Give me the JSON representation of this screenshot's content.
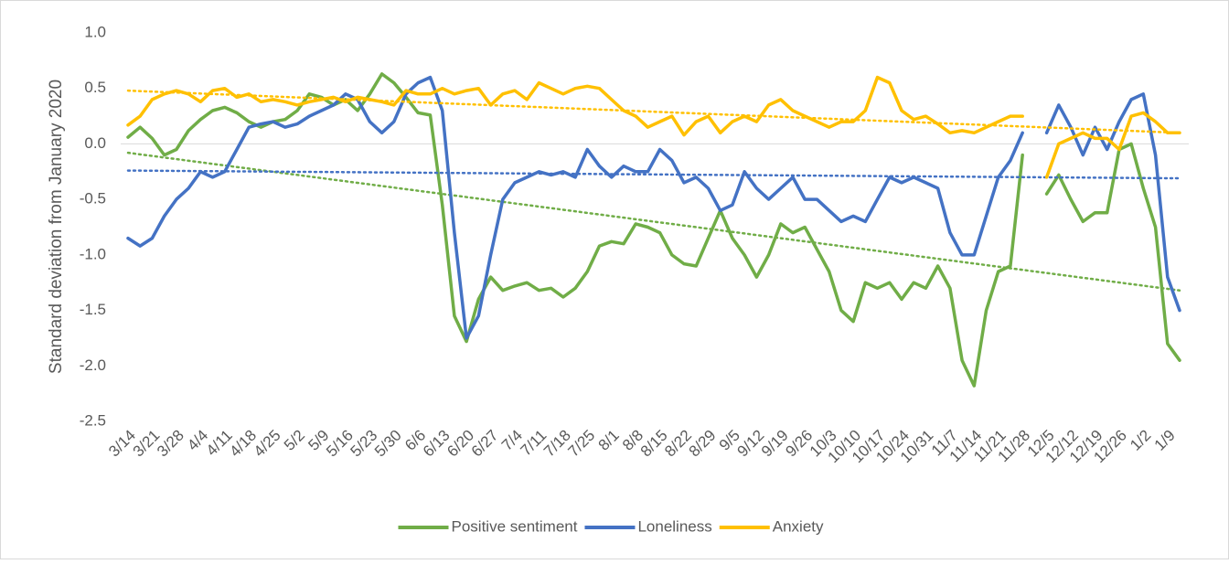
{
  "chart_data": {
    "type": "line",
    "y_label": "Standard deviation from January 2020",
    "categories": [
      "3/14",
      null,
      "3/21",
      null,
      "3/28",
      null,
      "4/4",
      null,
      "4/11",
      null,
      "4/18",
      null,
      "4/25",
      null,
      "5/2",
      null,
      "5/9",
      null,
      "5/16",
      null,
      "5/23",
      null,
      "5/30",
      null,
      "6/6",
      null,
      "6/13",
      null,
      "6/20",
      null,
      "6/27",
      null,
      "7/4",
      null,
      "7/11",
      null,
      "7/18",
      null,
      "7/25",
      null,
      "8/1",
      null,
      "8/8",
      null,
      "8/15",
      null,
      "8/22",
      null,
      "8/29",
      null,
      "9/5",
      null,
      "9/12",
      null,
      "9/19",
      null,
      "9/26",
      null,
      "10/3",
      null,
      "10/10",
      null,
      "10/17",
      null,
      "10/24",
      null,
      "10/31",
      null,
      "11/7",
      null,
      "11/14",
      null,
      "11/21",
      null,
      "11/28",
      null,
      "12/5",
      null,
      "12/12",
      null,
      "12/19",
      null,
      "12/26",
      null,
      "1/2",
      null,
      "1/9",
      null
    ],
    "series": [
      {
        "name": "Positive sentiment",
        "color": "#70ad47",
        "trend": [
          -0.08,
          -1.32
        ],
        "values": [
          0.06,
          0.15,
          0.05,
          -0.1,
          -0.05,
          0.12,
          0.22,
          0.3,
          0.33,
          0.28,
          0.2,
          0.15,
          0.2,
          0.22,
          0.3,
          0.45,
          0.42,
          0.35,
          0.4,
          0.3,
          0.45,
          0.63,
          0.55,
          0.42,
          0.28,
          0.26,
          -0.55,
          -1.55,
          -1.78,
          -1.4,
          -1.2,
          -1.32,
          -1.28,
          -1.25,
          -1.32,
          -1.3,
          -1.38,
          -1.3,
          -1.15,
          -0.92,
          -0.88,
          -0.9,
          -0.72,
          -0.75,
          -0.8,
          -1.0,
          -1.08,
          -1.1,
          -0.85,
          -0.6,
          -0.85,
          -1.0,
          -1.2,
          -1.0,
          -0.72,
          -0.8,
          -0.75,
          -0.95,
          -1.15,
          -1.5,
          -1.6,
          -1.25,
          -1.3,
          -1.25,
          -1.4,
          -1.25,
          -1.3,
          -1.1,
          -1.3,
          -1.95,
          -2.18,
          -1.5,
          -1.15,
          -1.1,
          -0.1,
          null,
          -0.45,
          -0.28,
          -0.5,
          -0.7,
          -0.62,
          -0.62,
          -0.05,
          0.0,
          -0.4,
          -0.75,
          -1.8,
          -1.95
        ]
      },
      {
        "name": "Loneliness",
        "color": "#4472c4",
        "trend": [
          -0.24,
          -0.31
        ],
        "values": [
          -0.85,
          -0.92,
          -0.85,
          -0.65,
          -0.5,
          -0.4,
          -0.25,
          -0.3,
          -0.25,
          -0.05,
          0.15,
          0.18,
          0.2,
          0.15,
          0.18,
          0.25,
          0.3,
          0.35,
          0.45,
          0.4,
          0.2,
          0.1,
          0.2,
          0.45,
          0.55,
          0.6,
          0.3,
          -0.8,
          -1.75,
          -1.55,
          -1.0,
          -0.5,
          -0.35,
          -0.3,
          -0.25,
          -0.28,
          -0.25,
          -0.3,
          -0.05,
          -0.2,
          -0.3,
          -0.2,
          -0.25,
          -0.25,
          -0.05,
          -0.15,
          -0.35,
          -0.3,
          -0.4,
          -0.6,
          -0.55,
          -0.25,
          -0.4,
          -0.5,
          -0.4,
          -0.3,
          -0.5,
          -0.5,
          -0.6,
          -0.7,
          -0.65,
          -0.7,
          -0.5,
          -0.3,
          -0.35,
          -0.3,
          -0.35,
          -0.4,
          -0.8,
          -1.0,
          -1.0,
          -0.65,
          -0.3,
          -0.15,
          0.1,
          null,
          0.1,
          0.35,
          0.15,
          -0.1,
          0.15,
          -0.05,
          0.2,
          0.4,
          0.45,
          -0.1,
          -1.2,
          -1.5
        ]
      },
      {
        "name": "Anxiety",
        "color": "#ffc000",
        "trend": [
          0.48,
          0.1
        ],
        "values": [
          0.17,
          0.25,
          0.4,
          0.45,
          0.48,
          0.45,
          0.38,
          0.48,
          0.5,
          0.42,
          0.45,
          0.38,
          0.4,
          0.38,
          0.35,
          0.38,
          0.4,
          0.42,
          0.38,
          0.42,
          0.4,
          0.38,
          0.35,
          0.48,
          0.45,
          0.45,
          0.5,
          0.45,
          0.48,
          0.5,
          0.35,
          0.45,
          0.48,
          0.4,
          0.55,
          0.5,
          0.45,
          0.5,
          0.52,
          0.5,
          0.4,
          0.3,
          0.25,
          0.15,
          0.2,
          0.25,
          0.08,
          0.2,
          0.25,
          0.1,
          0.2,
          0.25,
          0.2,
          0.35,
          0.4,
          0.3,
          0.25,
          0.2,
          0.15,
          0.2,
          0.2,
          0.3,
          0.6,
          0.55,
          0.3,
          0.22,
          0.25,
          0.18,
          0.1,
          0.12,
          0.1,
          0.15,
          0.2,
          0.25,
          0.25,
          null,
          -0.3,
          0.0,
          0.05,
          0.1,
          0.05,
          0.05,
          -0.05,
          0.25,
          0.28,
          0.2,
          0.1,
          0.1
        ]
      }
    ],
    "ylim": [
      -2.5,
      1.0
    ],
    "yticks": [
      {
        "value": 1,
        "label": "1.0"
      },
      0.5,
      {
        "value": 0,
        "label": "0.0"
      },
      -0.5,
      {
        "value": -1,
        "label": "-1.0"
      },
      -1.5,
      {
        "value": -2,
        "label": "-2.0"
      },
      -2.5
    ],
    "grid": false,
    "legend": "bottom"
  }
}
